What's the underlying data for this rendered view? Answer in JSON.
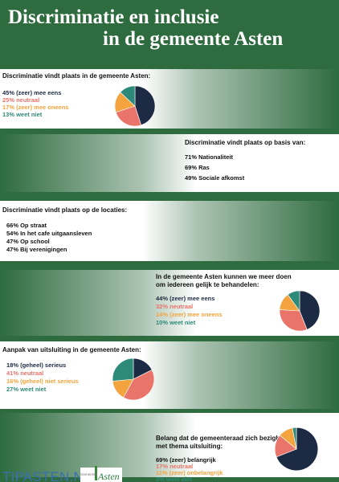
{
  "title": {
    "line1": "Discriminatie en  inclusie",
    "line2": "in de gemeente Asten"
  },
  "colors": {
    "background": "#2e6b3f",
    "navy": "#1d2a44",
    "red": "#e8746a",
    "orange": "#f3a43f",
    "teal": "#2e8a78"
  },
  "sections": [
    {
      "heading": "Discriminatie vindt plaats in de gemeente Asten:",
      "items": [
        {
          "text": "45% (zeer) mee eens",
          "value": 45,
          "color": "navy"
        },
        {
          "text": "25% neutraal",
          "value": 25,
          "color": "red"
        },
        {
          "text": "17% (zeer) mee oneens",
          "value": 17,
          "color": "orange"
        },
        {
          "text": "13% weet niet",
          "value": 13,
          "color": "teal"
        }
      ]
    },
    {
      "heading": "Discriminatie vindt plaats op basis van:",
      "items": [
        {
          "text": "71% Nationaliteit"
        },
        {
          "text": "69% Ras"
        },
        {
          "text": "49% Sociale afkomst"
        }
      ]
    },
    {
      "heading": "Discriminatie vindt plaats op de locaties:",
      "items": [
        {
          "text": "66% Op straat"
        },
        {
          "text": "54% In het cafe uitgaansleven"
        },
        {
          "text": "47% Op school"
        },
        {
          "text": "47% Bij verenigingen"
        }
      ]
    },
    {
      "heading_line1": "In de gemeente Asten kunnen we meer doen",
      "heading_line2": "om iedereen gelijk te behandelen:",
      "items": [
        {
          "text": "44% (zeer) mee eens",
          "value": 44,
          "color": "navy"
        },
        {
          "text": "32% neutraal",
          "value": 32,
          "color": "red"
        },
        {
          "text": "14% (zeer) mee oneens",
          "value": 14,
          "color": "orange"
        },
        {
          "text": "10% weet niet",
          "value": 10,
          "color": "teal"
        }
      ]
    },
    {
      "heading": "Aanpak van uitsluiting in de gemeente Asten:",
      "items": [
        {
          "text": "18% (geheel) serieus",
          "value": 18,
          "color": "navy"
        },
        {
          "text": "41% neutraal",
          "value": 41,
          "color": "red"
        },
        {
          "text": "16% (geheel) niet serieus",
          "value": 16,
          "color": "orange"
        },
        {
          "text": "27% weet niet",
          "value": 27,
          "color": "teal"
        }
      ]
    },
    {
      "heading_line1": "Belang dat de gemeenteraad zich bezighoudt",
      "heading_line2": "met thema uitsluiting:",
      "items": [
        {
          "text": "69% (zeer) belangrijk",
          "value": 69,
          "color": "navy"
        },
        {
          "text": "17% neutraal",
          "value": 17,
          "color": "red"
        },
        {
          "text": "11% (zeer) onbelangrijk",
          "value": 11,
          "color": "orange"
        },
        {
          "text": "3% weet niet",
          "value": 3,
          "color": "teal"
        }
      ]
    }
  ],
  "footer": {
    "tip_logo": "TIPASTEN.NL",
    "gemeente_small": "Gemeente",
    "gemeente_name": "Asten"
  }
}
